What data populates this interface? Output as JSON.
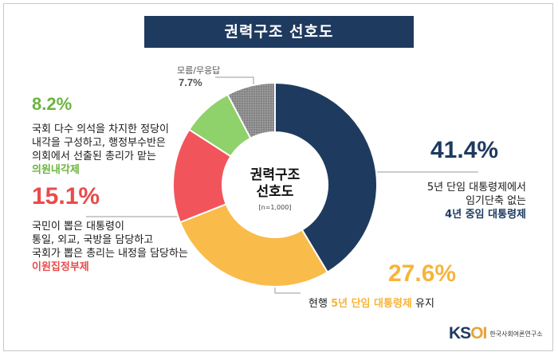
{
  "title": "권력구조 선호도",
  "center": {
    "title_line1": "권력구조",
    "title_line2": "선호도",
    "sample": "[n=1,000]"
  },
  "colors": {
    "navy": "#1e3a5f",
    "yellow": "#f9bb4a",
    "red": "#f2545b",
    "green": "#8fd16a",
    "gray": "#8a8a8a",
    "pct_navy": "#1e3a5f",
    "pct_yellow": "#f7b43b",
    "pct_red": "#e94b4b",
    "pct_green": "#6db33f",
    "pct_gray": "#555555"
  },
  "labels": {
    "four_year": {
      "pct": "41.4%",
      "lines": [
        "5년 단임 대통령제에서",
        "임기단축 없는"
      ],
      "highlight": "4년 중임 대통령제"
    },
    "current": {
      "pct": "27.6%",
      "prefix": "현행 ",
      "highlight": "5년 단임 대통령제",
      "suffix": " 유지"
    },
    "dual": {
      "pct": "15.1%",
      "lines": [
        "국민이 뽑은 대통령이",
        "통일, 외교, 국방을 담당하고",
        "국회가 뽑은 총리는 내정을 담당하는"
      ],
      "highlight": "이원집정부제"
    },
    "parliamentary": {
      "pct": "8.2%",
      "lines": [
        "국회 다수 의석을 차지한 정당이",
        "내각을 구성하고, 행정부수반은",
        "의회에서 선출된 총리가 맡는"
      ],
      "highlight": "의원내각제"
    },
    "unknown": {
      "name": "모름/무응답",
      "pct": "7.7%"
    }
  },
  "logo": {
    "mark_k": "K",
    "mark_s": "S",
    "mark_oi": "OI",
    "text": "한국사회여론연구소"
  },
  "chart_data": {
    "type": "pie",
    "title": "권력구조 선호도",
    "subtitle": "[n=1,000]",
    "categories": [
      "4년 중임 대통령제",
      "현행 5년 단임 대통령제 유지",
      "이원집정부제",
      "의원내각제",
      "모름/무응답"
    ],
    "values": [
      41.4,
      27.6,
      15.1,
      8.2,
      7.7
    ],
    "colors": [
      "#1e3a5f",
      "#f9bb4a",
      "#f2545b",
      "#8fd16a",
      "#8a8a8a"
    ],
    "donut": true
  }
}
